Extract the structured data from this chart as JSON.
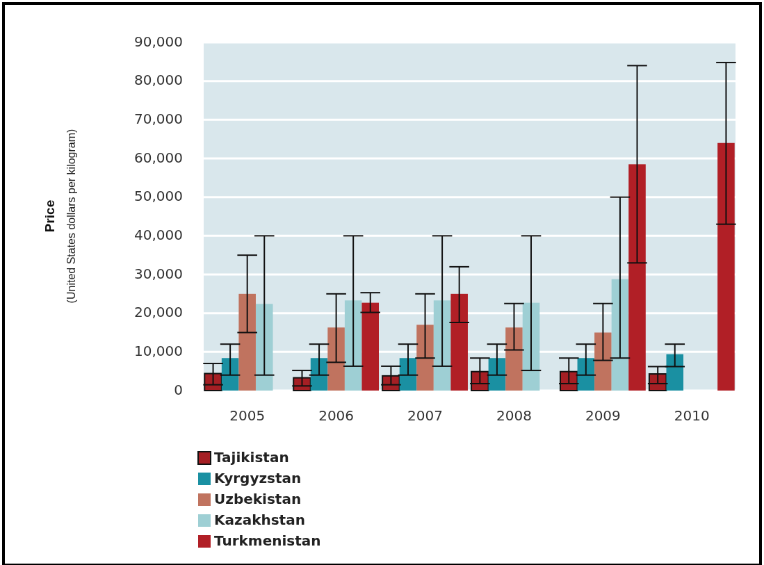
{
  "chart_data": {
    "type": "bar",
    "ylabel": "Price\n(United States dollars per kilogram)",
    "categories": [
      "2005",
      "2006",
      "2007",
      "2008",
      "2009",
      "2010"
    ],
    "series": [
      {
        "name": "Tajikistan",
        "color": "#a51f24",
        "values": [
          4400,
          3300,
          3800,
          4900,
          4900,
          4300
        ],
        "errors": [
          [
            1500,
            7000
          ],
          [
            1200,
            5200
          ],
          [
            1500,
            6300
          ],
          [
            1800,
            8400
          ],
          [
            1800,
            8400
          ],
          [
            1800,
            6200
          ]
        ]
      },
      {
        "name": "Kyrgyzstan",
        "color": "#1a90a2",
        "values": [
          8400,
          8400,
          8400,
          8400,
          8400,
          9400
        ],
        "errors": [
          [
            4000,
            12000
          ],
          [
            4000,
            12000
          ],
          [
            4000,
            12000
          ],
          [
            4000,
            12000
          ],
          [
            4000,
            12000
          ],
          [
            6200,
            12000
          ]
        ]
      },
      {
        "name": "Uzbekistan",
        "color": "#c0735f",
        "values": [
          25000,
          16300,
          17000,
          16300,
          15000,
          null
        ],
        "errors": [
          [
            15000,
            35000
          ],
          [
            7300,
            25000
          ],
          [
            8400,
            25000
          ],
          [
            10500,
            22500
          ],
          [
            7800,
            22500
          ],
          null
        ]
      },
      {
        "name": "Kazakhstan",
        "color": "#9ecfd4",
        "values": [
          22400,
          23300,
          23300,
          22700,
          28800,
          null
        ],
        "errors": [
          [
            4000,
            40000
          ],
          [
            6300,
            40000
          ],
          [
            6300,
            40000
          ],
          [
            5200,
            40000
          ],
          [
            8400,
            50000
          ],
          null
        ]
      },
      {
        "name": "Turkmenistan",
        "color": "#b11f26",
        "values": [
          null,
          22700,
          25000,
          null,
          58500,
          64000
        ],
        "errors": [
          null,
          [
            20200,
            25300
          ],
          [
            17600,
            32000
          ],
          null,
          [
            33000,
            84000
          ],
          [
            43000,
            84800
          ]
        ]
      }
    ],
    "ylim": [
      0,
      90000
    ],
    "yticks": [
      {
        "value": 0,
        "label": "0"
      },
      {
        "value": 10000,
        "label": "10,000"
      },
      {
        "value": 20000,
        "label": "20,000"
      },
      {
        "value": 30000,
        "label": "30,000"
      },
      {
        "value": 40000,
        "label": "40,000"
      },
      {
        "value": 50000,
        "label": "50,000"
      },
      {
        "value": 60000,
        "label": "60,000"
      },
      {
        "value": 70000,
        "label": "70,000"
      },
      {
        "value": 80000,
        "label": "80,000"
      },
      {
        "value": 90000,
        "label": "90,000"
      }
    ],
    "grid": "y",
    "legend": "bottom left"
  }
}
